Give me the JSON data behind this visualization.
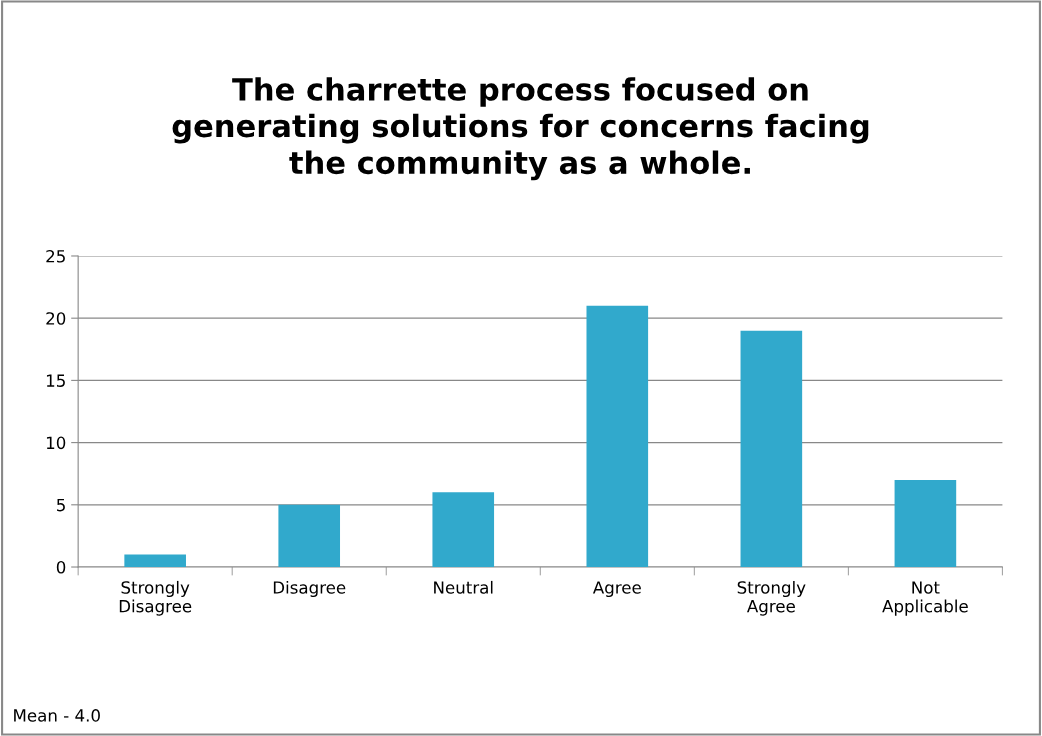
{
  "chart_data": {
    "type": "bar",
    "title": "The charrette process focused on\ngenerating solutions for concerns facing\nthe community as a whole.",
    "categories": [
      "Strongly\nDisagree",
      "Disagree",
      "Neutral",
      "Agree",
      "Strongly\nAgree",
      "Not\nApplicable"
    ],
    "values": [
      1,
      5,
      6,
      21,
      19,
      7
    ],
    "color": "#31a9cc",
    "ylim": [
      0,
      25
    ],
    "yticks": [
      0,
      5,
      10,
      15,
      20,
      25
    ],
    "grid": "y",
    "legend": false,
    "annotations": [
      "Mean - 4.0"
    ]
  }
}
